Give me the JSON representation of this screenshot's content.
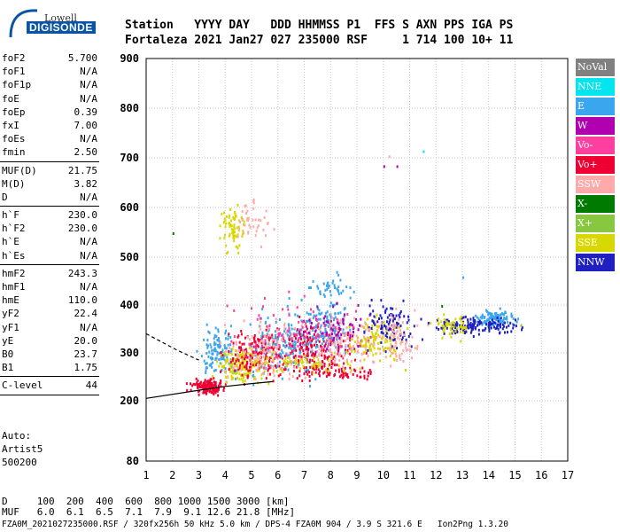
{
  "logo": {
    "line1": "Lowell",
    "line2": "DIGISONDE"
  },
  "header": {
    "line1": "Station   YYYY DAY   DDD HHMMSS P1  FFS S AXN PPS IGA PS",
    "line2": "Fortaleza 2021 Jan27 027 235000 RSF     1 714 100 10+ 11"
  },
  "params": [
    {
      "label": "foF2",
      "value": "5.700",
      "sep_after": false
    },
    {
      "label": "foF1",
      "value": "N/A",
      "sep_after": false
    },
    {
      "label": "foF1p",
      "value": "N/A",
      "sep_after": false
    },
    {
      "label": "foE",
      "value": "N/A",
      "sep_after": false
    },
    {
      "label": "foEp",
      "value": "0.39",
      "sep_after": false
    },
    {
      "label": "fxI",
      "value": "7.00",
      "sep_after": false
    },
    {
      "label": "foEs",
      "value": "N/A",
      "sep_after": false
    },
    {
      "label": "fmin",
      "value": "2.50",
      "sep_after": true
    },
    {
      "label": "MUF(D)",
      "value": "21.75",
      "sep_after": false
    },
    {
      "label": "M(D)",
      "value": "3.82",
      "sep_after": false
    },
    {
      "label": "D",
      "value": "N/A",
      "sep_after": true
    },
    {
      "label": "h`F",
      "value": "230.0",
      "sep_after": false
    },
    {
      "label": "h`F2",
      "value": "230.0",
      "sep_after": false
    },
    {
      "label": "h`E",
      "value": "N/A",
      "sep_after": false
    },
    {
      "label": "h`Es",
      "value": "N/A",
      "sep_after": true
    },
    {
      "label": "hmF2",
      "value": "243.3",
      "sep_after": false
    },
    {
      "label": "hmF1",
      "value": "N/A",
      "sep_after": false
    },
    {
      "label": "hmE",
      "value": "110.0",
      "sep_after": false
    },
    {
      "label": "yF2",
      "value": "22.4",
      "sep_after": false
    },
    {
      "label": "yF1",
      "value": "N/A",
      "sep_after": false
    },
    {
      "label": "yE",
      "value": "20.0",
      "sep_after": false
    },
    {
      "label": "B0",
      "value": "23.7",
      "sep_after": false
    },
    {
      "label": "B1",
      "value": "1.75",
      "sep_after": true
    },
    {
      "label": "C-level",
      "value": "44",
      "sep_after": true
    }
  ],
  "extra": {
    "auto": "Auto:",
    "artist": "Artist5",
    "code": "500200"
  },
  "legend": [
    {
      "label": "NoVal",
      "color": "#808080"
    },
    {
      "label": "NNE",
      "color": "#00e5ee"
    },
    {
      "label": "E",
      "color": "#3aa6ee"
    },
    {
      "label": "W",
      "color": "#b000b0"
    },
    {
      "label": "Vo-",
      "color": "#ff3fa0"
    },
    {
      "label": "Vo+",
      "color": "#ee0033"
    },
    {
      "label": "SSW",
      "color": "#ffaaaa"
    },
    {
      "label": "X-",
      "color": "#007a00"
    },
    {
      "label": "X+",
      "color": "#88c840"
    },
    {
      "label": "SSE",
      "color": "#d8d800"
    },
    {
      "label": "NNW",
      "color": "#2020c0"
    }
  ],
  "footer": {
    "line1": "D     100  200  400  600  800 1000 1500 3000 [km]",
    "line2": "MUF   6.0  6.1  6.5  7.1  7.9  9.1 12.6 21.8 [MHz]",
    "line3": "FZA0M_2021027235000.RSF / 320fx256h 50 kHz 5.0 km / DPS-4 FZA0M 904 / 3.9 S 321.6 E   Ion2Png 1.3.20"
  },
  "chart_data": {
    "type": "scatter",
    "xlim": [
      1,
      17
    ],
    "ylim": [
      80,
      900
    ],
    "x_ticks": [
      "1",
      "2",
      "3",
      "4",
      "5",
      "6",
      "7",
      "8",
      "9",
      "10",
      "11",
      "12",
      "13",
      "14",
      "15",
      "16",
      "17"
    ],
    "y_ticks": [
      "80",
      "200",
      "300",
      "400",
      "500",
      "600",
      "700",
      "800",
      "900"
    ],
    "grid": true,
    "trace_lines": [
      {
        "name": "o-trace",
        "points": [
          [
            1.0,
            205
          ],
          [
            3.0,
            222
          ],
          [
            4.0,
            230
          ],
          [
            5.0,
            236
          ],
          [
            5.8,
            240
          ]
        ]
      },
      {
        "name": "x-trace",
        "points": [
          [
            1.0,
            340
          ],
          [
            2.2,
            305
          ],
          [
            3.0,
            285
          ]
        ]
      }
    ],
    "clusters": [
      {
        "cx": 3.3,
        "cy": 232,
        "sx": 0.5,
        "sy": 12,
        "n": 140,
        "color": "Vo+"
      },
      {
        "cx": 3.8,
        "cy": 300,
        "sx": 0.6,
        "sy": 40,
        "n": 120,
        "color": "E"
      },
      {
        "cx": 4.6,
        "cy": 275,
        "sx": 0.8,
        "sy": 30,
        "n": 160,
        "color": "SSE"
      },
      {
        "cx": 5.3,
        "cy": 300,
        "sx": 1.0,
        "sy": 45,
        "n": 180,
        "color": "Vo+"
      },
      {
        "cx": 6.3,
        "cy": 320,
        "sx": 1.2,
        "sy": 55,
        "n": 160,
        "color": "E"
      },
      {
        "cx": 5.8,
        "cy": 310,
        "sx": 1.4,
        "sy": 50,
        "n": 140,
        "color": "SSW"
      },
      {
        "cx": 7.3,
        "cy": 310,
        "sx": 1.2,
        "sy": 40,
        "n": 150,
        "color": "Vo+"
      },
      {
        "cx": 7.8,
        "cy": 360,
        "sx": 0.8,
        "sy": 45,
        "n": 120,
        "color": "E"
      },
      {
        "cx": 8.5,
        "cy": 330,
        "sx": 1.1,
        "sy": 45,
        "n": 130,
        "color": "SSW"
      },
      {
        "cx": 8.2,
        "cy": 350,
        "sx": 1.3,
        "sy": 40,
        "n": 80,
        "color": "W"
      },
      {
        "cx": 6.5,
        "cy": 350,
        "sx": 2.0,
        "sy": 60,
        "n": 90,
        "color": "Vo-"
      },
      {
        "cx": 9.7,
        "cy": 330,
        "sx": 0.8,
        "sy": 35,
        "n": 110,
        "color": "SSE"
      },
      {
        "cx": 10.2,
        "cy": 360,
        "sx": 0.7,
        "sy": 40,
        "n": 100,
        "color": "NNW"
      },
      {
        "cx": 10.4,
        "cy": 330,
        "sx": 0.8,
        "sy": 40,
        "n": 80,
        "color": "SSW"
      },
      {
        "cx": 12.8,
        "cy": 360,
        "sx": 0.7,
        "sy": 15,
        "n": 60,
        "color": "NNW"
      },
      {
        "cx": 14.2,
        "cy": 375,
        "sx": 0.6,
        "sy": 15,
        "n": 110,
        "color": "E"
      },
      {
        "cx": 14.0,
        "cy": 360,
        "sx": 0.9,
        "sy": 15,
        "n": 80,
        "color": "NNW"
      },
      {
        "cx": 12.6,
        "cy": 360,
        "sx": 0.6,
        "sy": 20,
        "n": 50,
        "color": "SSE"
      },
      {
        "cx": 4.3,
        "cy": 560,
        "sx": 0.4,
        "sy": 35,
        "n": 70,
        "color": "SSE"
      },
      {
        "cx": 5.1,
        "cy": 580,
        "sx": 0.5,
        "sy": 40,
        "n": 40,
        "color": "SSW"
      },
      {
        "cx": 8.0,
        "cy": 440,
        "sx": 0.6,
        "sy": 25,
        "n": 40,
        "color": "E"
      },
      {
        "cx": 8.0,
        "cy": 260,
        "sx": 1.5,
        "sy": 12,
        "n": 80,
        "color": "Vo+"
      },
      {
        "cx": 7.0,
        "cy": 280,
        "sx": 1.6,
        "sy": 15,
        "n": 60,
        "color": "SSE"
      }
    ],
    "points": [
      {
        "x": 2.0,
        "y": 550,
        "color": "X-"
      },
      {
        "x": 10.0,
        "y": 685,
        "color": "W"
      },
      {
        "x": 10.5,
        "y": 685,
        "color": "W"
      },
      {
        "x": 10.2,
        "y": 705,
        "color": "SSW"
      },
      {
        "x": 11.5,
        "y": 715,
        "color": "NNE"
      },
      {
        "x": 13.0,
        "y": 460,
        "color": "E"
      },
      {
        "x": 12.2,
        "y": 400,
        "color": "X-"
      },
      {
        "x": 15.2,
        "y": 360,
        "color": "X+"
      }
    ]
  }
}
